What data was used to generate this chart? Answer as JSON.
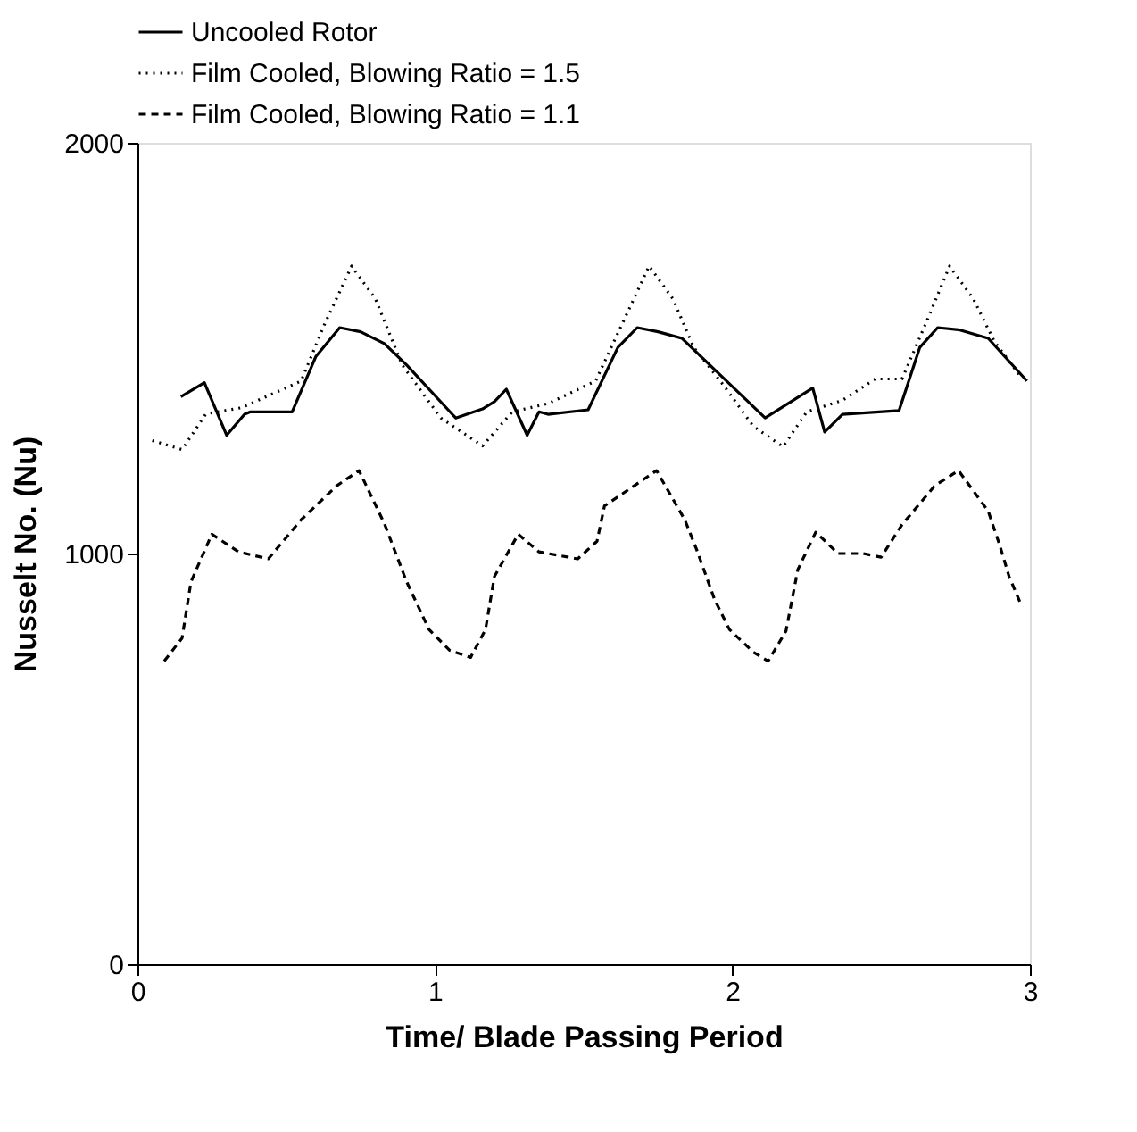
{
  "chart_data": {
    "type": "line",
    "xlabel": "Time/ Blade Passing Period",
    "ylabel": "Nusselt No. (Nu)",
    "xlim": [
      0,
      3
    ],
    "xticks": [
      0,
      1,
      2,
      3
    ],
    "ylim": [
      0,
      2000
    ],
    "yticks": [
      0,
      1000,
      2000
    ],
    "grid": false,
    "legend": "top",
    "marker": "none",
    "series": [
      {
        "name": "Uncooled Rotor",
        "color": "#000000",
        "line_style": "solid",
        "x": [
          0.146,
          0.225,
          0.3,
          0.36,
          0.38,
          0.52,
          0.6,
          0.68,
          0.75,
          0.83,
          0.905,
          1.07,
          1.16,
          1.2,
          1.24,
          1.31,
          1.35,
          1.38,
          1.515,
          1.615,
          1.68,
          1.75,
          1.83,
          2.11,
          2.27,
          2.31,
          2.37,
          2.56,
          2.63,
          2.69,
          2.76,
          2.86,
          2.99
        ],
        "values": [
          1382,
          1416,
          1288,
          1339,
          1345,
          1345,
          1480,
          1550,
          1540,
          1511,
          1459,
          1330,
          1352,
          1370,
          1400,
          1288,
          1345,
          1339,
          1350,
          1502,
          1550,
          1540,
          1524,
          1330,
          1403,
          1296,
          1339,
          1348,
          1502,
          1550,
          1545,
          1524,
          1420
        ]
      },
      {
        "name": "Film Cooled, Blowing Ratio = 1.5",
        "color": "#000000",
        "line_style": "dotted",
        "x": [
          0.05,
          0.15,
          0.23,
          0.35,
          0.55,
          0.63,
          0.72,
          0.8,
          0.89,
          1.02,
          1.16,
          1.26,
          1.38,
          1.54,
          1.63,
          1.72,
          1.8,
          1.87,
          1.97,
          2.07,
          2.17,
          2.25,
          2.37,
          2.48,
          2.57,
          2.65,
          2.73,
          2.81,
          2.88,
          2.97
        ],
        "values": [
          1275,
          1253,
          1340,
          1355,
          1420,
          1560,
          1700,
          1620,
          1459,
          1330,
          1262,
          1345,
          1365,
          1420,
          1560,
          1700,
          1620,
          1502,
          1410,
          1310,
          1260,
          1345,
          1373,
          1425,
          1425,
          1560,
          1700,
          1620,
          1517,
          1430
        ]
      },
      {
        "name": "Film Cooled, Blowing Ratio = 1.1",
        "color": "#000000",
        "line_style": "dashed",
        "x": [
          0.09,
          0.15,
          0.18,
          0.25,
          0.34,
          0.44,
          0.55,
          0.67,
          0.745,
          0.83,
          0.905,
          0.98,
          1.05,
          1.12,
          1.17,
          1.2,
          1.28,
          1.35,
          1.48,
          1.545,
          1.57,
          1.67,
          1.745,
          1.84,
          1.88,
          1.94,
          1.99,
          2.07,
          2.12,
          2.18,
          2.22,
          2.28,
          2.355,
          2.44,
          2.5,
          2.57,
          2.68,
          2.76,
          2.86,
          2.9,
          2.93,
          2.97
        ],
        "values": [
          738,
          794,
          931,
          1047,
          1004,
          987,
          1082,
          1165,
          1202,
          1073,
          931,
          815,
          764,
          747,
          815,
          944,
          1047,
          1004,
          987,
          1030,
          1116,
          1165,
          1202,
          1082,
          1009,
          888,
          815,
          760,
          738,
          811,
          961,
          1052,
          1000,
          1000,
          991,
          1070,
          1165,
          1202,
          1103,
          1017,
          944,
          876
        ]
      }
    ]
  }
}
